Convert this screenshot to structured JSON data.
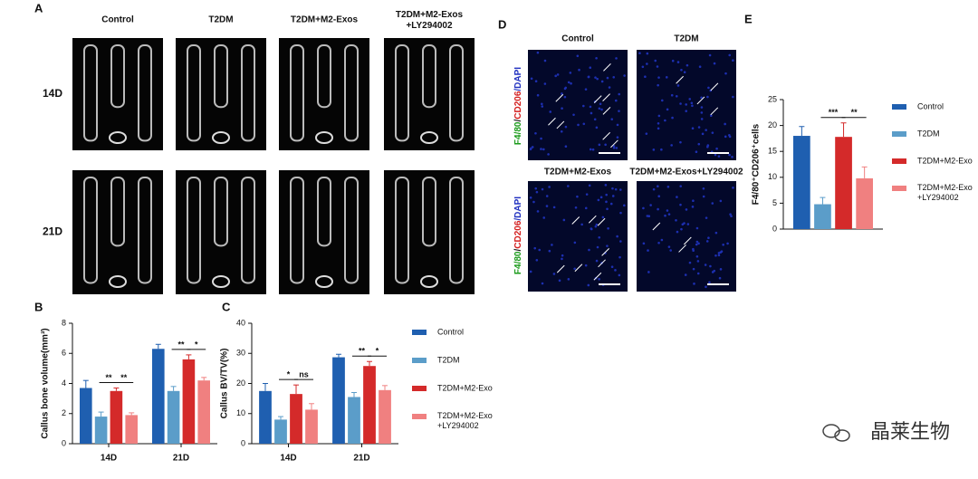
{
  "panel_a": {
    "label": "A",
    "columns": [
      "Control",
      "T2DM",
      "T2DM+M2-Exos",
      "T2DM+M2-Exos\n+LY294002"
    ],
    "rows": [
      "14D",
      "21D"
    ]
  },
  "panel_d": {
    "label": "D",
    "headers": [
      "Control",
      "T2DM",
      "T2DM+M2-Exos",
      "T2DM+M2-Exos+LY294002"
    ],
    "stain": [
      "F4/80",
      "/",
      "CD206",
      "/DAPI"
    ]
  },
  "chart_data": [
    {
      "type": "bar",
      "panel": "B",
      "ylabel": "Callus bone volume(mm³)",
      "categories": [
        "14D",
        "21D"
      ],
      "ylim": [
        0,
        8
      ],
      "yticks": [
        0,
        2,
        4,
        6,
        8
      ],
      "series": [
        {
          "color": "#1f5fb0",
          "values": [
            3.7,
            6.3
          ],
          "errors": [
            0.5,
            0.3
          ]
        },
        {
          "color": "#5b9dc9",
          "values": [
            1.8,
            3.5
          ],
          "errors": [
            0.3,
            0.3
          ]
        },
        {
          "color": "#d42a2a",
          "values": [
            3.5,
            5.6
          ],
          "errors": [
            0.2,
            0.3
          ]
        },
        {
          "color": "#f08080",
          "values": [
            1.9,
            4.2
          ],
          "errors": [
            0.15,
            0.2
          ]
        }
      ],
      "significance": [
        [
          "**",
          "**"
        ],
        [
          "**",
          "*"
        ]
      ]
    },
    {
      "type": "bar",
      "panel": "C",
      "ylabel": "Callus BV/TV(%)",
      "categories": [
        "14D",
        "21D"
      ],
      "ylim": [
        0,
        40
      ],
      "yticks": [
        0,
        10,
        20,
        30,
        40
      ],
      "series": [
        {
          "name": "Control",
          "color": "#1f5fb0",
          "values": [
            17.5,
            28.7
          ],
          "errors": [
            2.5,
            1
          ]
        },
        {
          "name": "T2DM",
          "color": "#5b9dc9",
          "values": [
            8,
            15.5
          ],
          "errors": [
            1,
            1.5
          ]
        },
        {
          "name": "T2DM+M2-Exo",
          "color": "#d42a2a",
          "values": [
            16.5,
            25.8
          ],
          "errors": [
            3,
            1.5
          ]
        },
        {
          "name": "T2DM+M2-Exo\n+LY294002",
          "color": "#f08080",
          "values": [
            11.3,
            17.8
          ],
          "errors": [
            2,
            1.5
          ]
        }
      ],
      "significance": [
        [
          "*",
          "ns"
        ],
        [
          "**",
          "*"
        ]
      ]
    },
    {
      "type": "bar",
      "panel": "E",
      "ylabel": "F4/80⁺CD206⁺cells",
      "categories": [
        null
      ],
      "ylim": [
        0,
        25
      ],
      "yticks": [
        0,
        5,
        10,
        15,
        20,
        25
      ],
      "series": [
        {
          "name": "Control",
          "color": "#1f5fb0",
          "values": [
            18
          ],
          "errors": [
            1.8
          ]
        },
        {
          "name": "T2DM",
          "color": "#5b9dc9",
          "values": [
            4.8
          ],
          "errors": [
            1.3
          ]
        },
        {
          "name": "T2DM+M2-Exo",
          "color": "#d42a2a",
          "values": [
            17.8
          ],
          "errors": [
            2.7
          ]
        },
        {
          "name": "T2DM+M2-Exo\n+LY294002",
          "color": "#f08080",
          "values": [
            9.8
          ],
          "errors": [
            2.2
          ]
        }
      ],
      "significance": [
        [
          "***",
          "**"
        ]
      ]
    }
  ],
  "watermark": "晶莱生物"
}
